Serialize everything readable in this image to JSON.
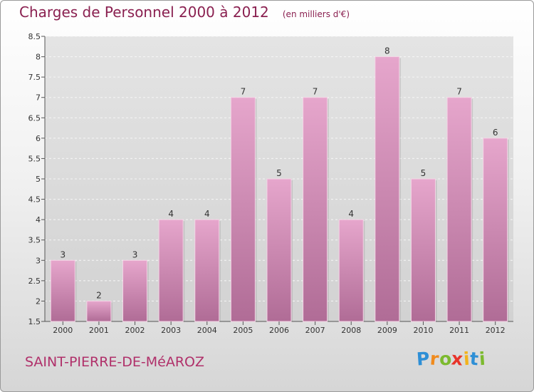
{
  "title": "Charges de Personnel 2000 à 2012",
  "unit": "(en milliers d'€)",
  "place": "SAINT-PIERRE-DE-MéAROZ",
  "brand": {
    "letters": [
      "P",
      "r",
      "o",
      "x",
      "i",
      "t",
      "i"
    ],
    "colors": [
      "#2e8fd6",
      "#f08a1c",
      "#7cba2e",
      "#e8342a",
      "#f2b31c",
      "#2e8fd6",
      "#7cba2e"
    ]
  },
  "colors": {
    "bar_top": "#e6a6cc",
    "bar_bottom": "#b06c96",
    "title": "#8a2050"
  },
  "chart_data": {
    "type": "bar",
    "categories": [
      "2000",
      "2001",
      "2002",
      "2003",
      "2004",
      "2005",
      "2006",
      "2007",
      "2008",
      "2009",
      "2010",
      "2011",
      "2012"
    ],
    "values": [
      3,
      2,
      3,
      4,
      4,
      7,
      5,
      7,
      4,
      8,
      5,
      7,
      6
    ],
    "data_labels": [
      "3",
      "2",
      "3",
      "4",
      "4",
      "7",
      "5",
      "7",
      "4",
      "8",
      "5",
      "7",
      "6"
    ],
    "ylim": [
      1.5,
      8.5
    ],
    "yticks": [
      1.5,
      2,
      2.5,
      3,
      3.5,
      4,
      4.5,
      5,
      5.5,
      6,
      6.5,
      7,
      7.5,
      8,
      8.5
    ],
    "ytick_labels": [
      "1.5",
      "2",
      "2.5",
      "3",
      "3.5",
      "4",
      "4.5",
      "5",
      "5.5",
      "6",
      "6.5",
      "7",
      "7.5",
      "8",
      "8.5"
    ],
    "grid": true,
    "xlabel": "",
    "ylabel": ""
  }
}
